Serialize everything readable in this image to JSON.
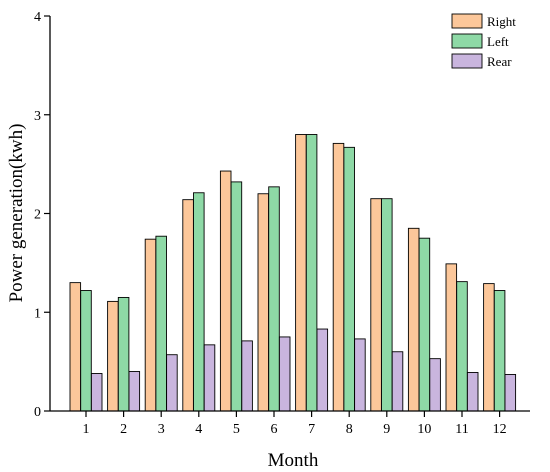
{
  "chart_data": {
    "type": "bar",
    "title": "",
    "xlabel": "Month",
    "ylabel": "Power generation(kwh)",
    "categories": [
      "1",
      "2",
      "3",
      "4",
      "5",
      "6",
      "7",
      "8",
      "9",
      "10",
      "11",
      "12"
    ],
    "ylim": [
      0,
      4
    ],
    "yticks": [
      "0",
      "1",
      "2",
      "3",
      "4"
    ],
    "grid": false,
    "legend_position": "top-right",
    "series": [
      {
        "name": "Right",
        "color": "#FCC79A",
        "values": [
          1.3,
          1.11,
          1.74,
          2.14,
          2.43,
          2.2,
          2.8,
          2.71,
          2.15,
          1.85,
          1.49,
          1.29
        ]
      },
      {
        "name": "Left",
        "color": "#8ED9A6",
        "values": [
          1.22,
          1.15,
          1.77,
          2.21,
          2.32,
          2.27,
          2.8,
          2.67,
          2.15,
          1.75,
          1.31,
          1.22
        ]
      },
      {
        "name": "Rear",
        "color": "#C9B5DE",
        "values": [
          0.38,
          0.4,
          0.57,
          0.67,
          0.71,
          0.75,
          0.83,
          0.73,
          0.6,
          0.53,
          0.39,
          0.37
        ]
      }
    ]
  }
}
